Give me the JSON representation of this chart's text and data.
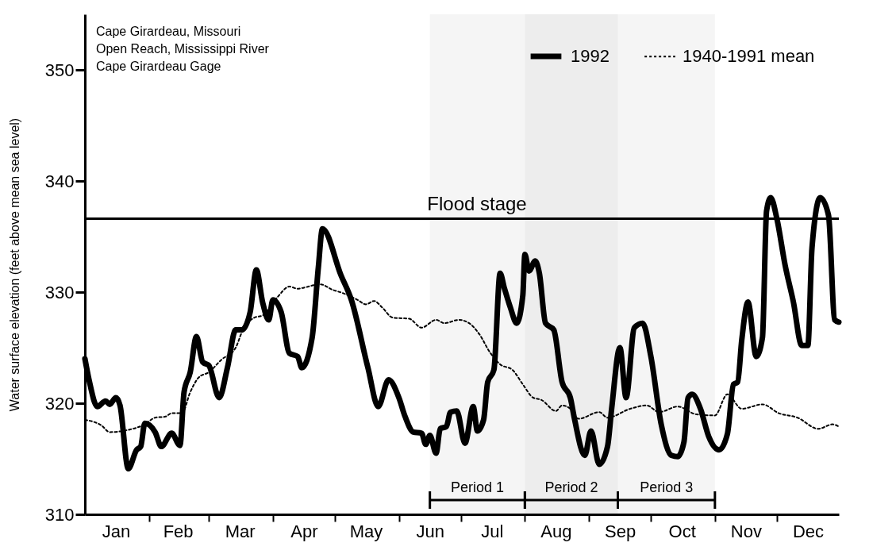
{
  "chart_data": {
    "type": "line",
    "ylabel": "Water surface elevation (feet above mean sea level)",
    "annotations": [
      "Cape Girardeau, Missouri",
      "Open Reach, Mississippi River",
      "Cape Girardeau Gage"
    ],
    "xlim": [
      "--01-01",
      "--12-31"
    ],
    "xticks": [
      {
        "value": "--01-16",
        "label": "Jan"
      },
      {
        "value": "--02-01",
        "label": null
      },
      {
        "value": "--02-15",
        "label": "Feb"
      },
      {
        "value": "--03-01",
        "label": null
      },
      {
        "value": "--03-16",
        "label": "Mar"
      },
      {
        "value": "--04-01",
        "label": null
      },
      {
        "value": "--04-16",
        "label": "Apr"
      },
      {
        "value": "--05-01",
        "label": null
      },
      {
        "value": "--05-16",
        "label": "May"
      },
      {
        "value": "--06-01",
        "label": null
      },
      {
        "value": "--06-16",
        "label": "Jun"
      },
      {
        "value": "--07-01",
        "label": null
      },
      {
        "value": "--07-16",
        "label": "Jul"
      },
      {
        "value": "--08-01",
        "label": null
      },
      {
        "value": "--08-16",
        "label": "Aug"
      },
      {
        "value": "--09-01",
        "label": null
      },
      {
        "value": "--09-16",
        "label": "Sep"
      },
      {
        "value": "--10-01",
        "label": null
      },
      {
        "value": "--10-16",
        "label": "Oct"
      },
      {
        "value": "--11-01",
        "label": null
      },
      {
        "value": "--11-16",
        "label": "Nov"
      },
      {
        "value": "--12-01",
        "label": null
      },
      {
        "value": "--12-16",
        "label": "Dec"
      }
    ],
    "ylim": [
      310,
      355
    ],
    "yticks": [
      310,
      320,
      330,
      340,
      350
    ],
    "grid": false,
    "legend": "top right",
    "ref_lines": [
      {
        "axis": "y",
        "value": 336.6,
        "label": "Flood stage"
      }
    ],
    "bands": [
      {
        "axis": "x",
        "from": "--06-16",
        "to": "--08-01",
        "label": "Period 1"
      },
      {
        "axis": "x",
        "from": "--08-01",
        "to": "--09-15",
        "label": "Period 2"
      },
      {
        "axis": "x",
        "from": "--09-15",
        "to": "--11-01",
        "label": "Period 3"
      }
    ],
    "series": [
      {
        "name": "1992",
        "color": "#000000",
        "line_style": "solid",
        "x": [
          "--01-01",
          "--01-03",
          "--01-07",
          "--01-11",
          "--01-13",
          "--01-16",
          "--01-18",
          "--01-22",
          "--01-26",
          "--01-28",
          "--01-30",
          "--02-04",
          "--02-07",
          "--02-12",
          "--02-16",
          "--02-18",
          "--02-21",
          "--02-24",
          "--02-27",
          "--03-01",
          "--03-06",
          "--03-10",
          "--03-14",
          "--03-17",
          "--03-21",
          "--03-24",
          "--03-27",
          "--03-30",
          "--04-01",
          "--04-05",
          "--04-09",
          "--04-13",
          "--04-15",
          "--04-20",
          "--04-23",
          "--04-25",
          "--05-04",
          "--05-09",
          "--05-17",
          "--05-22",
          "--05-27",
          "--06-01",
          "--06-04",
          "--06-08",
          "--06-12",
          "--06-14",
          "--06-16",
          "--06-19",
          "--06-21",
          "--06-24",
          "--06-26",
          "--06-29",
          "--07-03",
          "--07-07",
          "--07-09",
          "--07-12",
          "--07-14",
          "--07-17",
          "--07-20",
          "--07-22",
          "--07-25",
          "--07-28",
          "--07-31",
          "--08-01",
          "--08-03",
          "--08-06",
          "--08-08",
          "--08-11",
          "--08-15",
          "--08-19",
          "--08-23",
          "--08-25",
          "--08-30",
          "--09-02",
          "--09-06",
          "--09-10",
          "--09-12",
          "--09-16",
          "--09-19",
          "--09-23",
          "--09-27",
          "--10-01",
          "--10-06",
          "--10-11",
          "--10-14",
          "--10-17",
          "--10-19",
          "--10-21",
          "--10-25",
          "--10-29",
          "--11-03",
          "--11-07",
          "--11-10",
          "--11-12",
          "--11-14",
          "--11-17",
          "--11-21",
          "--11-24",
          "--11-26",
          "--11-28",
          "--12-01",
          "--12-05",
          "--12-09",
          "--12-13",
          "--12-16",
          "--12-18",
          "--12-22",
          "--12-26",
          "--12-29",
          "--12-31"
        ],
        "values": [
          324,
          322.1,
          319.7,
          320.2,
          319.9,
          320.5,
          319.8,
          314.1,
          315.8,
          316.1,
          318.2,
          317.4,
          316.1,
          317.3,
          316.2,
          321,
          322.8,
          326,
          323.7,
          323.4,
          320.5,
          323.2,
          326.6,
          326.6,
          328.2,
          332,
          329.1,
          327.5,
          329.3,
          328.2,
          324.5,
          324.2,
          323.2,
          325.9,
          332.2,
          335.7,
          331.5,
          329.3,
          323.2,
          319.7,
          322.1,
          320.5,
          318.8,
          317.4,
          317.3,
          316.3,
          317.1,
          315.5,
          317.7,
          317.9,
          319.2,
          319.3,
          316.4,
          319.7,
          317.5,
          318.5,
          321.9,
          323,
          331.7,
          330.4,
          328.6,
          327.2,
          329.7,
          333.4,
          331.9,
          332.8,
          331.7,
          327.2,
          326.6,
          321.9,
          320.5,
          318.6,
          315.3,
          317.5,
          314.5,
          316.1,
          319.5,
          325,
          320.5,
          326.8,
          327.2,
          324.2,
          318.1,
          315.3,
          315.2,
          316.5,
          320.5,
          320.8,
          319.5,
          317,
          315.8,
          317.2,
          321.7,
          321.9,
          325.7,
          329.1,
          324.2,
          325.9,
          337.3,
          338.5,
          336.6,
          332.4,
          329.1,
          325.2,
          325.2,
          334,
          338.5,
          336.9,
          327.5,
          327.3
        ]
      },
      {
        "name": "1940-1991 mean",
        "color": "#000000",
        "line_style": "dotted",
        "x": [
          "--01-01",
          "--01-09",
          "--01-13",
          "--01-22",
          "--01-30",
          "--02-04",
          "--02-09",
          "--02-12",
          "--02-17",
          "--02-21",
          "--02-25",
          "--03-01",
          "--03-07",
          "--03-14",
          "--03-17",
          "--03-23",
          "--03-27",
          "--04-03",
          "--04-09",
          "--04-13",
          "--04-16",
          "--04-24",
          "--04-30",
          "--05-05",
          "--05-12",
          "--05-16",
          "--05-20",
          "--05-24",
          "--05-29",
          "--06-06",
          "--06-12",
          "--06-19",
          "--06-23",
          "--06-30",
          "--07-05",
          "--07-10",
          "--07-15",
          "--07-20",
          "--07-26",
          "--07-31",
          "--08-05",
          "--08-09",
          "--08-16",
          "--08-19",
          "--08-23",
          "--08-27",
          "--09-06",
          "--09-10",
          "--09-21",
          "--09-29",
          "--10-05",
          "--10-14",
          "--10-23",
          "--11-01",
          "--11-07",
          "--11-14",
          "--11-24",
          "--12-02",
          "--12-11",
          "--12-21",
          "--12-28",
          "--12-31"
        ],
        "values": [
          318.5,
          318,
          317.4,
          317.6,
          318.1,
          318.7,
          318.8,
          319.1,
          319.1,
          321,
          322.3,
          322.8,
          323.9,
          325,
          326.4,
          327.7,
          327.9,
          329.5,
          330.5,
          330.3,
          330.4,
          330.7,
          330.2,
          329.9,
          329.3,
          328.9,
          329.2,
          328.6,
          327.7,
          327.6,
          326.8,
          327.5,
          327.2,
          327.5,
          327.2,
          326.2,
          324.6,
          323.5,
          323,
          321.7,
          320.5,
          320.3,
          319.3,
          319.8,
          319.5,
          318.6,
          319.2,
          318.7,
          319.5,
          319.8,
          319.2,
          319.7,
          319,
          318.9,
          320.8,
          319.5,
          319.9,
          319.1,
          318.7,
          317.7,
          318.1,
          317.9
        ]
      }
    ]
  }
}
